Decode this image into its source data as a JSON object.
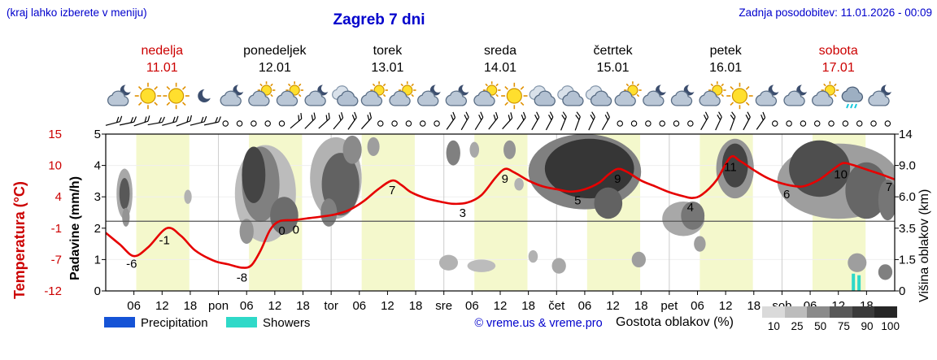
{
  "header": {
    "hint": "(kraj lahko izberete v meniju)",
    "title": "Zagreb 7 dni",
    "updated": "Zadnja posodobitev: 11.01.2026 - 00:09"
  },
  "days": [
    {
      "name": "nedelja",
      "date": "11.01",
      "red": true
    },
    {
      "name": "ponedeljek",
      "date": "12.01",
      "red": false
    },
    {
      "name": "torek",
      "date": "13.01",
      "red": false
    },
    {
      "name": "sreda",
      "date": "14.01",
      "red": false
    },
    {
      "name": "četrtek",
      "date": "15.01",
      "red": false
    },
    {
      "name": "petek",
      "date": "16.01",
      "red": false
    },
    {
      "name": "sobota",
      "date": "17.01",
      "red": true
    }
  ],
  "axes": {
    "temperature": {
      "title": "Temperatura (°C)",
      "tick_labels": [
        "15",
        "10",
        "4",
        "-1",
        "-7",
        "-12"
      ]
    },
    "precipitation": {
      "title": "Padavine (mm/h)",
      "tick_labels": [
        "5",
        "4",
        "3",
        "2",
        "1",
        "0"
      ]
    },
    "cloud_height": {
      "title": "Višina oblakov (km)",
      "tick_labels": [
        "14",
        "9.0",
        "6.0",
        "3.5",
        "1.5",
        "0"
      ]
    }
  },
  "x_axis": {
    "tick_labels": [
      {
        "h": 6,
        "label": "06"
      },
      {
        "h": 12,
        "label": "12"
      },
      {
        "h": 18,
        "label": "18"
      },
      {
        "h": 24,
        "label": "pon"
      },
      {
        "h": 30,
        "label": "06"
      },
      {
        "h": 36,
        "label": "12"
      },
      {
        "h": 42,
        "label": "18"
      },
      {
        "h": 48,
        "label": "tor"
      },
      {
        "h": 54,
        "label": "06"
      },
      {
        "h": 60,
        "label": "12"
      },
      {
        "h": 66,
        "label": "18"
      },
      {
        "h": 72,
        "label": "sre"
      },
      {
        "h": 78,
        "label": "06"
      },
      {
        "h": 84,
        "label": "12"
      },
      {
        "h": 90,
        "label": "18"
      },
      {
        "h": 96,
        "label": "čet"
      },
      {
        "h": 102,
        "label": "06"
      },
      {
        "h": 108,
        "label": "12"
      },
      {
        "h": 114,
        "label": "18"
      },
      {
        "h": 120,
        "label": "pet"
      },
      {
        "h": 126,
        "label": "06"
      },
      {
        "h": 132,
        "label": "12"
      },
      {
        "h": 138,
        "label": "18"
      },
      {
        "h": 144,
        "label": "sob"
      },
      {
        "h": 150,
        "label": "06"
      },
      {
        "h": 156,
        "label": "12"
      },
      {
        "h": 162,
        "label": "18"
      }
    ]
  },
  "icon_row": [
    "cloud-moon",
    "sun",
    "sun",
    "moon",
    "cloud-moon",
    "cloud-sun",
    "cloud-sun",
    "cloud-moon",
    "cloud",
    "cloud-sun",
    "cloud-sun",
    "cloud-moon",
    "cloud-moon",
    "cloud-sun",
    "sun",
    "cloud",
    "cloud",
    "cloud",
    "cloud-sun",
    "cloud-moon",
    "cloud-moon",
    "cloud-sun",
    "sun",
    "cloud-moon",
    "cloud-moon",
    "cloud-sun",
    "cloud-rain",
    "cloud-moon"
  ],
  "wind_row": [
    "b-15",
    "b-12",
    "b-18",
    "b-10",
    "b-15",
    "b-20",
    "b-14",
    "b-12",
    "c",
    "c",
    "c",
    "c",
    "c",
    "b-40",
    "b-45",
    "b-42",
    "b-50",
    "b-55",
    "b-48",
    "c",
    "c",
    "c",
    "c",
    "c",
    "b-55",
    "b-60",
    "b-58",
    "b-52",
    "b-48",
    "b-55",
    "b-60",
    "b-62",
    "b-68",
    "b-70",
    "b-65",
    "b-60",
    "c",
    "c",
    "c",
    "c",
    "c",
    "c",
    "b-60",
    "b-65",
    "b-70",
    "b-62",
    "b-55",
    "c",
    "c",
    "c",
    "c",
    "c",
    "c",
    "c",
    "c",
    "c"
  ],
  "legend": {
    "precipitation": "Precipitation",
    "showers": "Showers",
    "credit": "© vreme.us & vreme.pro",
    "cloud_density_label": "Gostota oblakov (%)",
    "density_levels": [
      "10",
      "25",
      "50",
      "75",
      "90",
      "100"
    ]
  },
  "colors": {
    "header_blue": "#0000cc",
    "highlight_red": "#cc0000",
    "temperature_line": "#e60000",
    "precipitation_blue": "#1553d6",
    "showers_cyan": "#2fd9c8",
    "daylight_band": "#f4f8cc"
  },
  "chart_data": {
    "type": "line",
    "title": "Zagreb 7 dni",
    "x_axis_unit": "hour of 7-day period (11.01–17.01)",
    "x_range_hours": [
      0,
      168
    ],
    "temperature_axis_c": {
      "range": [
        -12,
        15
      ],
      "ticks": [
        15,
        10,
        4,
        -1,
        -7,
        -12
      ]
    },
    "precipitation_axis_mmh": {
      "range": [
        0,
        5
      ],
      "ticks": [
        0,
        1,
        2,
        3,
        4,
        5
      ]
    },
    "cloud_height_axis_km": {
      "ticks": [
        0,
        1.5,
        3.5,
        6.0,
        9.0,
        14
      ]
    },
    "daylight_hours": [
      6.5,
      17.8
    ],
    "temperature_c": {
      "x": [
        0,
        3,
        6,
        9,
        13,
        16,
        19,
        23,
        26,
        29,
        31,
        33,
        35,
        37,
        40,
        43,
        46,
        49,
        52,
        55,
        58,
        61,
        63,
        65,
        68,
        71,
        74,
        77,
        80,
        83,
        85,
        87,
        90,
        93,
        96,
        99,
        102,
        105,
        107,
        109,
        111,
        114,
        117,
        120,
        123,
        125,
        127,
        130,
        133,
        135,
        138,
        141,
        144,
        147,
        149,
        152,
        155,
        157,
        159,
        162,
        165,
        168
      ],
      "y": [
        -2,
        -4,
        -6,
        -4.5,
        -1.2,
        -2.5,
        -5,
        -6.8,
        -7.4,
        -8,
        -7.6,
        -5,
        -1.5,
        0,
        0.2,
        0.5,
        0.8,
        1.2,
        2,
        3.5,
        5.5,
        7,
        6.2,
        5,
        4,
        3.4,
        3,
        3.2,
        4.5,
        7.5,
        9,
        8.4,
        7,
        6,
        5.5,
        5.1,
        5.5,
        6.6,
        8,
        9,
        8.5,
        7,
        6,
        5,
        4.3,
        4,
        4.6,
        7,
        11,
        10.4,
        8.8,
        7.4,
        6.5,
        6,
        6.1,
        7.2,
        9,
        10,
        9.7,
        8.9,
        8.1,
        7.2
      ]
    },
    "temperature_point_labels": [
      {
        "h": 5.5,
        "v": "-6"
      },
      {
        "h": 12.5,
        "v": "-1"
      },
      {
        "h": 29,
        "v": "-8"
      },
      {
        "h": 37.5,
        "v": "0"
      },
      {
        "h": 40.5,
        "v": "0"
      },
      {
        "h": 61,
        "v": "7"
      },
      {
        "h": 76,
        "v": "3"
      },
      {
        "h": 85,
        "v": "9"
      },
      {
        "h": 100.5,
        "v": "5"
      },
      {
        "h": 109,
        "v": "9"
      },
      {
        "h": 124.5,
        "v": "4"
      },
      {
        "h": 133,
        "v": "11"
      },
      {
        "h": 145,
        "v": "6"
      },
      {
        "h": 156.5,
        "v": "10"
      },
      {
        "h": 166.8,
        "v": "7"
      }
    ],
    "cloud_blobs": [
      {
        "h": 4,
        "w": 3.4,
        "l": 3.1,
        "t": 1.6,
        "d": 35
      },
      {
        "h": 4,
        "w": 2.2,
        "l": 3.1,
        "t": 1.0,
        "d": 75
      },
      {
        "h": 4.3,
        "w": 1.6,
        "l": 2.35,
        "t": 0.6,
        "d": 45
      },
      {
        "h": 17.5,
        "w": 1.6,
        "l": 3.0,
        "t": 0.45,
        "d": 30
      },
      {
        "h": 34,
        "w": 13,
        "l": 3.1,
        "t": 3.1,
        "d": 25
      },
      {
        "h": 33,
        "w": 8,
        "l": 3.4,
        "t": 2.4,
        "d": 55
      },
      {
        "h": 31.5,
        "w": 5,
        "l": 3.7,
        "t": 1.8,
        "d": 85
      },
      {
        "h": 38,
        "w": 6,
        "l": 2.4,
        "t": 1.2,
        "d": 65
      },
      {
        "h": 30,
        "w": 3,
        "l": 1.9,
        "t": 0.8,
        "d": 45
      },
      {
        "h": 49,
        "w": 11,
        "l": 3.6,
        "t": 2.6,
        "d": 30
      },
      {
        "h": 50,
        "w": 8,
        "l": 3.4,
        "t": 2.0,
        "d": 70
      },
      {
        "h": 52.5,
        "w": 4,
        "l": 4.5,
        "t": 0.9,
        "d": 50
      },
      {
        "h": 47.5,
        "w": 3.5,
        "l": 2.5,
        "t": 0.9,
        "d": 55
      },
      {
        "h": 57,
        "w": 2.6,
        "l": 4.6,
        "t": 0.6,
        "d": 40
      },
      {
        "h": 74,
        "w": 3,
        "l": 4.4,
        "t": 0.8,
        "d": 55
      },
      {
        "h": 78.5,
        "w": 2,
        "l": 4.5,
        "t": 0.5,
        "d": 35
      },
      {
        "h": 73,
        "w": 4,
        "l": 0.9,
        "t": 0.5,
        "d": 30
      },
      {
        "h": 80,
        "w": 6,
        "l": 0.8,
        "t": 0.4,
        "d": 25
      },
      {
        "h": 86,
        "w": 2.6,
        "l": 4.5,
        "t": 0.6,
        "d": 45
      },
      {
        "h": 88,
        "w": 2,
        "l": 3.4,
        "t": 0.4,
        "d": 30
      },
      {
        "h": 102,
        "w": 24,
        "l": 3.8,
        "t": 2.4,
        "d": 55
      },
      {
        "h": 103,
        "w": 19,
        "l": 3.9,
        "t": 1.9,
        "d": 92
      },
      {
        "h": 107,
        "w": 6,
        "l": 2.8,
        "t": 1.0,
        "d": 70
      },
      {
        "h": 96.5,
        "w": 3,
        "l": 0.8,
        "t": 0.5,
        "d": 35
      },
      {
        "h": 91,
        "w": 2,
        "l": 1.1,
        "t": 0.4,
        "d": 30
      },
      {
        "h": 113.5,
        "w": 3,
        "l": 1.0,
        "t": 0.5,
        "d": 40
      },
      {
        "h": 123,
        "w": 9,
        "l": 2.3,
        "t": 1.1,
        "d": 35
      },
      {
        "h": 125,
        "w": 5,
        "l": 2.4,
        "t": 0.9,
        "d": 60
      },
      {
        "h": 126.5,
        "w": 2.5,
        "l": 1.5,
        "t": 0.5,
        "d": 40
      },
      {
        "h": 134,
        "w": 8,
        "l": 3.9,
        "t": 1.9,
        "d": 45
      },
      {
        "h": 134,
        "w": 5.5,
        "l": 4.0,
        "t": 1.4,
        "d": 85
      },
      {
        "h": 156,
        "w": 26,
        "l": 3.5,
        "t": 2.4,
        "d": 40
      },
      {
        "h": 152,
        "w": 13,
        "l": 3.9,
        "t": 1.8,
        "d": 80
      },
      {
        "h": 162,
        "w": 9,
        "l": 3.2,
        "t": 1.8,
        "d": 68
      },
      {
        "h": 166.5,
        "w": 4,
        "l": 2.9,
        "t": 1.3,
        "d": 60
      },
      {
        "h": 160,
        "w": 4,
        "l": 0.9,
        "t": 0.6,
        "d": 40
      },
      {
        "h": 166,
        "w": 3,
        "l": 0.6,
        "t": 0.5,
        "d": 55
      }
    ],
    "shower_bars_gridline_units": [
      {
        "h": 159.2,
        "v": 0.55
      },
      {
        "h": 160.4,
        "v": 0.5
      }
    ]
  }
}
